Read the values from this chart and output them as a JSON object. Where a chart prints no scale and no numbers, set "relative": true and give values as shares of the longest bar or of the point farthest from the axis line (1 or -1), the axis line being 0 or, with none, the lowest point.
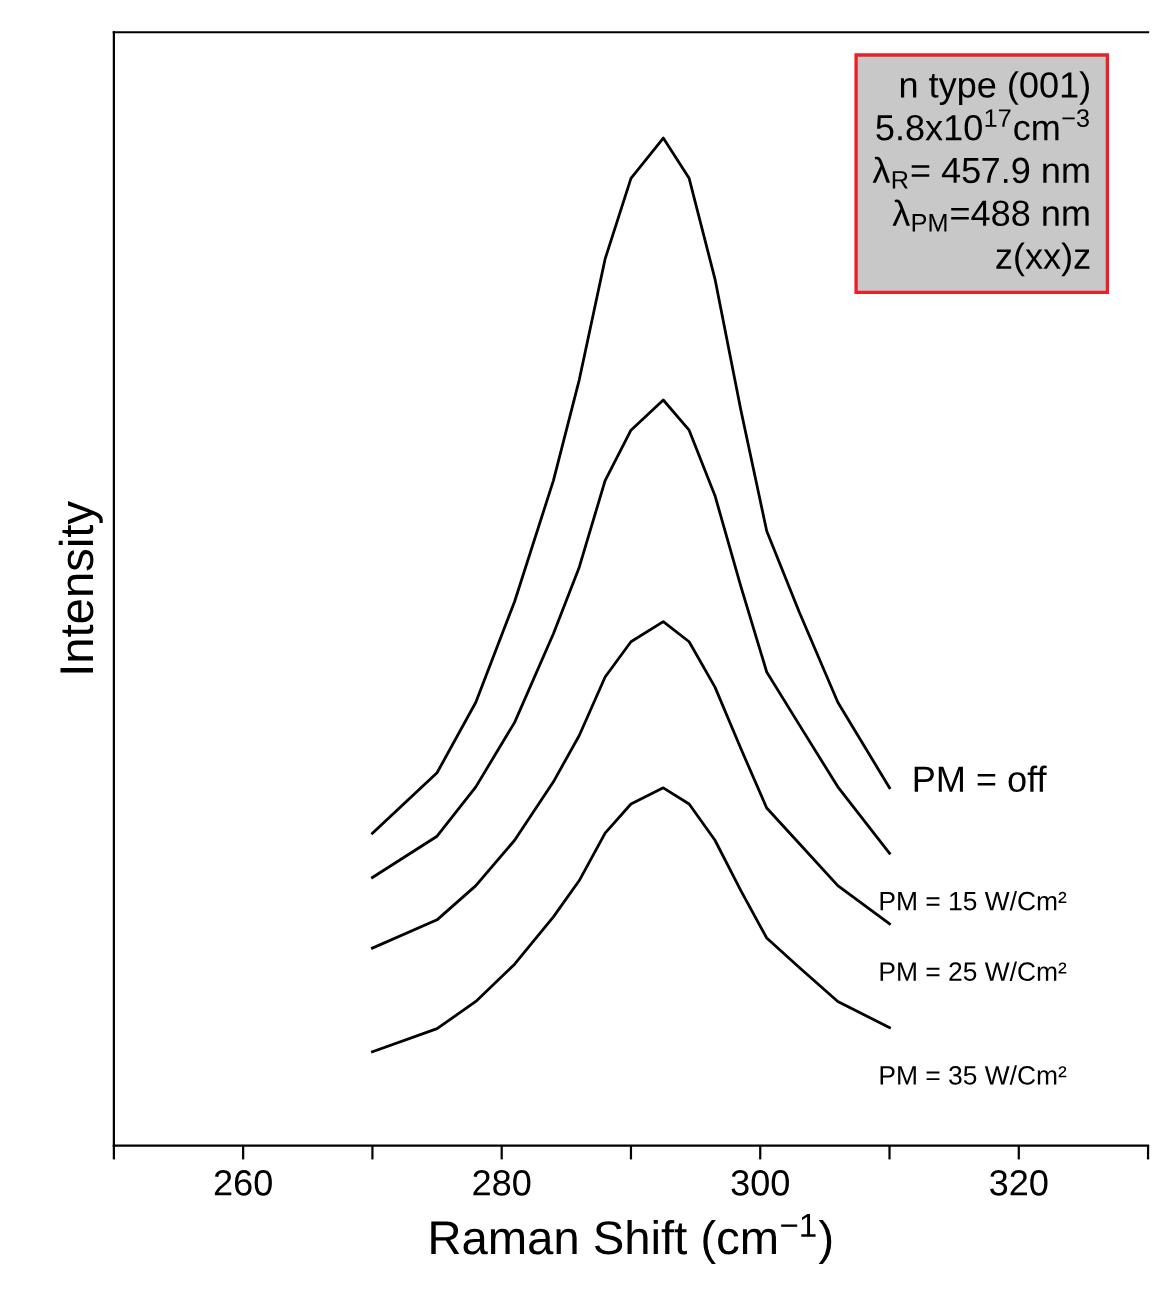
{
  "chart_data": {
    "type": "line",
    "relative": true,
    "xlabel": "Raman Shift (cm$^{−1}$)",
    "ylabel": "Intensity",
    "xlim": [
      250,
      330
    ],
    "xticks": [
      {
        "value": 250,
        "label": null
      },
      260,
      {
        "value": 270,
        "label": null
      },
      280,
      {
        "value": 290,
        "label": null
      },
      300,
      {
        "value": 310,
        "label": null
      },
      320,
      {
        "value": 330,
        "label": null
      }
    ],
    "tick_labels": "x",
    "grid": false,
    "legend": false,
    "marker": "none",
    "line_style": "solid",
    "x": [
      270,
      275,
      278,
      281,
      284,
      286,
      288,
      290,
      292.5,
      294.5,
      296.5,
      298.5,
      300.5,
      303,
      306,
      310
    ],
    "series": [
      {
        "name": "PM = off",
        "color": "#000000",
        "values": [
          0.31,
          0.37,
          0.44,
          0.54,
          0.66,
          0.76,
          0.88,
          0.96,
          1.0,
          0.96,
          0.86,
          0.73,
          0.61,
          0.53,
          0.44,
          0.355
        ]
      },
      {
        "name": "PM = 15 W/Cm²",
        "color": "#000000",
        "values": [
          0.266,
          0.307,
          0.356,
          0.42,
          0.508,
          0.574,
          0.66,
          0.71,
          0.74,
          0.71,
          0.645,
          0.555,
          0.47,
          0.418,
          0.356,
          0.29
        ]
      },
      {
        "name": "PM = 25 W/Cm²",
        "color": "#000000",
        "values": [
          0.196,
          0.224,
          0.258,
          0.303,
          0.361,
          0.407,
          0.465,
          0.5,
          0.52,
          0.5,
          0.455,
          0.394,
          0.335,
          0.3,
          0.258,
          0.22
        ]
      },
      {
        "name": "PM = 35 W/Cm²",
        "color": "#000000",
        "values": [
          0.093,
          0.116,
          0.143,
          0.18,
          0.227,
          0.263,
          0.31,
          0.339,
          0.355,
          0.339,
          0.303,
          0.253,
          0.206,
          0.177,
          0.143,
          0.117
        ]
      }
    ],
    "annotations": [
      "n type (001)",
      "5.8x10$^{17}$cm$^{−3}$",
      "λ$_{R}$= 457.9 nm",
      "λ$_{PM}$=488 nm",
      "z(xx)z"
    ]
  }
}
